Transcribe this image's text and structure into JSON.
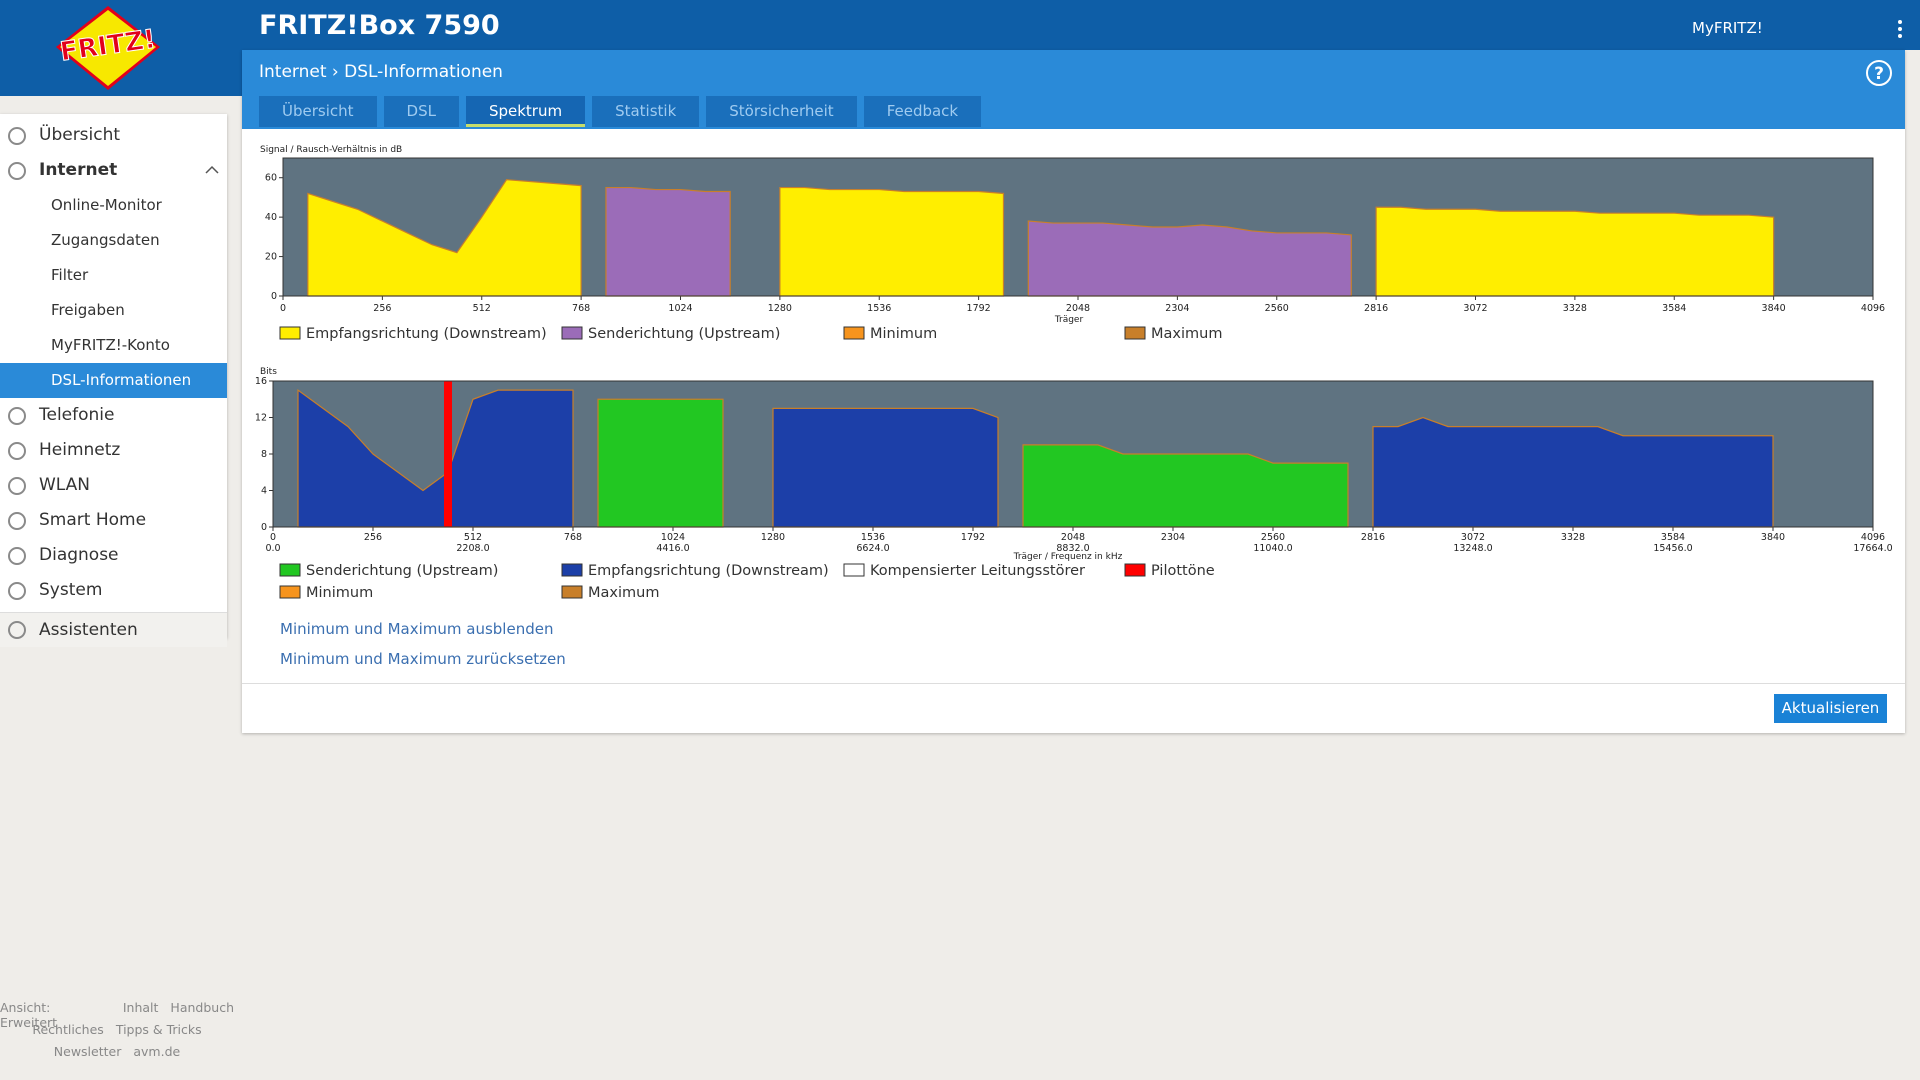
{
  "header": {
    "logo": "FRITZ!",
    "title": "FRITZ!Box 7590",
    "myfritz": "MyFRITZ!",
    "help": "?"
  },
  "breadcrumb": [
    "Internet",
    "DSL-Informationen"
  ],
  "nav": [
    {
      "label": "Übersicht"
    },
    {
      "label": "Internet",
      "expanded": true,
      "bold": true
    },
    {
      "label": "Online-Monitor",
      "sub": true
    },
    {
      "label": "Zugangsdaten",
      "sub": true
    },
    {
      "label": "Filter",
      "sub": true
    },
    {
      "label": "Freigaben",
      "sub": true
    },
    {
      "label": "MyFRITZ!-Konto",
      "sub": true
    },
    {
      "label": "DSL-Informationen",
      "sub": true,
      "active": true
    },
    {
      "label": "Telefonie"
    },
    {
      "label": "Heimnetz"
    },
    {
      "label": "WLAN"
    },
    {
      "label": "Smart Home"
    },
    {
      "label": "Diagnose"
    },
    {
      "label": "System"
    },
    {
      "label": "Assistenten",
      "separated": true
    }
  ],
  "tabs": {
    "items": [
      "Übersicht",
      "DSL",
      "Spektrum",
      "Statistik",
      "Störsicherheit",
      "Feedback"
    ],
    "active": 2
  },
  "chart_data": [
    {
      "type": "area",
      "y_label": "Signal / Rausch-Verhältnis in dB",
      "x_label": "Träger",
      "x": [
        0,
        64,
        128,
        192,
        256,
        320,
        384,
        448,
        512,
        576,
        640,
        704,
        768,
        832,
        896,
        960,
        1024,
        1088,
        1152,
        1216,
        1280,
        1344,
        1408,
        1472,
        1536,
        1600,
        1664,
        1728,
        1792,
        1856,
        1920,
        1984,
        2048,
        2112,
        2176,
        2240,
        2304,
        2368,
        2432,
        2496,
        2560,
        2624,
        2688,
        2752,
        2816,
        2880,
        2944,
        3008,
        3072,
        3136,
        3200,
        3264,
        3328,
        3392,
        3456,
        3520,
        3584,
        3648,
        3712,
        3776,
        3840,
        3904,
        3968,
        4032,
        4096
      ],
      "xlim": [
        0,
        4096
      ],
      "xticks": [
        0,
        256,
        512,
        768,
        1024,
        1280,
        1536,
        1792,
        2048,
        2304,
        2560,
        2816,
        3072,
        3328,
        3584,
        3840,
        4096
      ],
      "ylim": [
        0,
        70
      ],
      "yticks": [
        0,
        20,
        40,
        60
      ],
      "background": "#5f7381",
      "series": [
        {
          "name": "Empfangsrichtung (Downstream)",
          "color": "#ffee00",
          "values": [
            null,
            52,
            48,
            44,
            38,
            32,
            26,
            22,
            40,
            59,
            58,
            57,
            56,
            null,
            null,
            null,
            null,
            null,
            null,
            null,
            55,
            55,
            54,
            54,
            54,
            53,
            53,
            53,
            53,
            52,
            null,
            null,
            null,
            null,
            null,
            null,
            null,
            null,
            null,
            null,
            null,
            null,
            null,
            null,
            45,
            45,
            44,
            44,
            44,
            43,
            43,
            43,
            43,
            42,
            42,
            42,
            42,
            41,
            41,
            41,
            40,
            null,
            null,
            null,
            null
          ]
        },
        {
          "name": "Senderichtung (Upstream)",
          "color": "#9b6cb8",
          "values": [
            null,
            null,
            null,
            null,
            null,
            null,
            null,
            null,
            null,
            null,
            null,
            null,
            null,
            55,
            55,
            54,
            54,
            53,
            53,
            null,
            null,
            null,
            null,
            null,
            null,
            null,
            null,
            null,
            null,
            null,
            38,
            37,
            37,
            37,
            36,
            35,
            35,
            36,
            35,
            33,
            32,
            32,
            32,
            31,
            null,
            null,
            null,
            null,
            null,
            null,
            null,
            null,
            null,
            null,
            null,
            null,
            null,
            null,
            null,
            null,
            null,
            null,
            null,
            null,
            null
          ]
        },
        {
          "name": "Minimum",
          "color": "#f7941d"
        },
        {
          "name": "Maximum",
          "color": "#c87f2a"
        }
      ]
    },
    {
      "type": "area",
      "y_label": "Bits",
      "x_label": "Träger / Frequenz in kHz",
      "x": [
        0,
        64,
        128,
        192,
        256,
        320,
        384,
        448,
        512,
        576,
        640,
        704,
        768,
        832,
        896,
        960,
        1024,
        1088,
        1152,
        1216,
        1280,
        1344,
        1408,
        1472,
        1536,
        1600,
        1664,
        1728,
        1792,
        1856,
        1920,
        1984,
        2048,
        2112,
        2176,
        2240,
        2304,
        2368,
        2432,
        2496,
        2560,
        2624,
        2688,
        2752,
        2816,
        2880,
        2944,
        3008,
        3072,
        3136,
        3200,
        3264,
        3328,
        3392,
        3456,
        3520,
        3584,
        3648,
        3712,
        3776,
        3840,
        3904,
        3968,
        4032,
        4096
      ],
      "xlim": [
        0,
        4096
      ],
      "xticks": [
        0,
        256,
        512,
        768,
        1024,
        1280,
        1536,
        1792,
        2048,
        2304,
        2560,
        2816,
        3072,
        3328,
        3584,
        3840,
        4096
      ],
      "x2ticks": [
        {
          "value": 0,
          "label": "0.0"
        },
        {
          "value": 512,
          "label": "2208.0"
        },
        {
          "value": 1024,
          "label": "4416.0"
        },
        {
          "value": 1536,
          "label": "6624.0"
        },
        {
          "value": 2048,
          "label": "8832.0"
        },
        {
          "value": 2560,
          "label": "11040.0"
        },
        {
          "value": 3072,
          "label": "13248.0"
        },
        {
          "value": 3584,
          "label": "15456.0"
        },
        {
          "value": 4096,
          "label": "17664.0"
        }
      ],
      "ylim": [
        0,
        16
      ],
      "yticks": [
        0,
        4,
        8,
        12,
        16
      ],
      "background": "#5f7381",
      "series": [
        {
          "name": "Senderichtung (Upstream)",
          "color": "#22c722",
          "values": [
            null,
            null,
            null,
            null,
            null,
            null,
            null,
            null,
            null,
            null,
            null,
            null,
            null,
            14,
            14,
            14,
            14,
            14,
            14,
            null,
            null,
            null,
            null,
            null,
            null,
            null,
            null,
            null,
            null,
            null,
            9,
            9,
            9,
            9,
            8,
            8,
            8,
            8,
            8,
            8,
            7,
            7,
            7,
            7,
            null,
            null,
            null,
            null,
            null,
            null,
            null,
            null,
            null,
            null,
            null,
            null,
            null,
            null,
            null,
            null,
            null,
            null,
            null,
            null,
            null
          ]
        },
        {
          "name": "Empfangsrichtung (Downstream)",
          "color": "#1c3fa8",
          "values": [
            null,
            15,
            13,
            11,
            8,
            6,
            4,
            6,
            14,
            15,
            15,
            15,
            15,
            null,
            null,
            null,
            null,
            null,
            null,
            null,
            13,
            13,
            13,
            13,
            13,
            13,
            13,
            13,
            13,
            12,
            null,
            null,
            null,
            null,
            null,
            null,
            null,
            null,
            null,
            null,
            null,
            null,
            null,
            null,
            11,
            11,
            12,
            11,
            11,
            11,
            11,
            11,
            11,
            11,
            10,
            10,
            10,
            10,
            10,
            10,
            10,
            null,
            null,
            null,
            null
          ]
        },
        {
          "name": "Kompensierter Leitungsstörer",
          "color": "#ffffff"
        },
        {
          "name": "Pilottöne",
          "color": "#ff0000",
          "style": "bar",
          "values": [
            null,
            null,
            null,
            null,
            null,
            null,
            null,
            16,
            null,
            null,
            null,
            null,
            null,
            null,
            null,
            null,
            null,
            null,
            null,
            null,
            null,
            null,
            null,
            null,
            null,
            null,
            null,
            null,
            null,
            null,
            null,
            null,
            null,
            null,
            null,
            null,
            null,
            null,
            null,
            null,
            null,
            null,
            null,
            null,
            null,
            null,
            null,
            null,
            null,
            null,
            null,
            null,
            null,
            null,
            null,
            null,
            null,
            null,
            null,
            null,
            null,
            null,
            null,
            null,
            null
          ]
        },
        {
          "name": "Minimum",
          "color": "#f7941d"
        },
        {
          "name": "Maximum",
          "color": "#c87f2a"
        }
      ]
    }
  ],
  "links": [
    "Minimum und Maximum ausblenden",
    "Minimum und Maximum zurücksetzen"
  ],
  "button": "Aktualisieren",
  "footer": [
    [
      "Ansicht: Erweitert",
      "Inhalt",
      "Handbuch"
    ],
    [
      "Rechtliches",
      "Tipps & Tricks"
    ],
    [
      "Newsletter",
      "avm.de"
    ]
  ]
}
